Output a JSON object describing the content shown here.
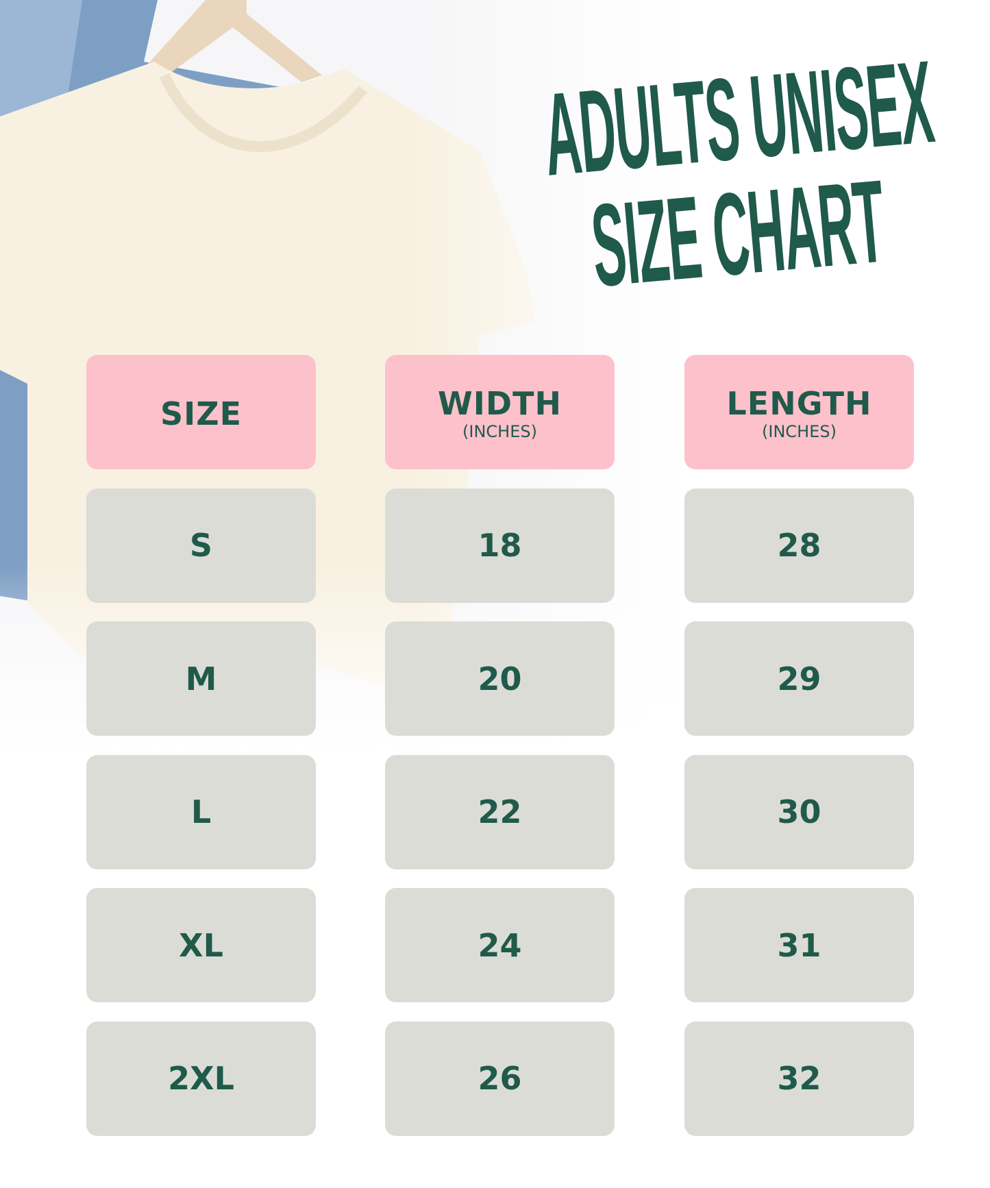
{
  "title": {
    "line1": "ADULTS UNISEX",
    "line2": "SIZE CHART"
  },
  "colors": {
    "accent_green": "#1f5a4b",
    "header_pink": "#fdc1cc",
    "cell_gray": "#dcdcd6"
  },
  "chart_data": {
    "type": "table",
    "columns": [
      {
        "label": "SIZE",
        "unit": ""
      },
      {
        "label": "WIDTH",
        "unit": "(INCHES)"
      },
      {
        "label": "LENGTH",
        "unit": "(INCHES)"
      }
    ],
    "rows": [
      [
        "S",
        "18",
        "28"
      ],
      [
        "M",
        "20",
        "29"
      ],
      [
        "L",
        "22",
        "30"
      ],
      [
        "XL",
        "24",
        "31"
      ],
      [
        "2XL",
        "26",
        "32"
      ]
    ]
  }
}
